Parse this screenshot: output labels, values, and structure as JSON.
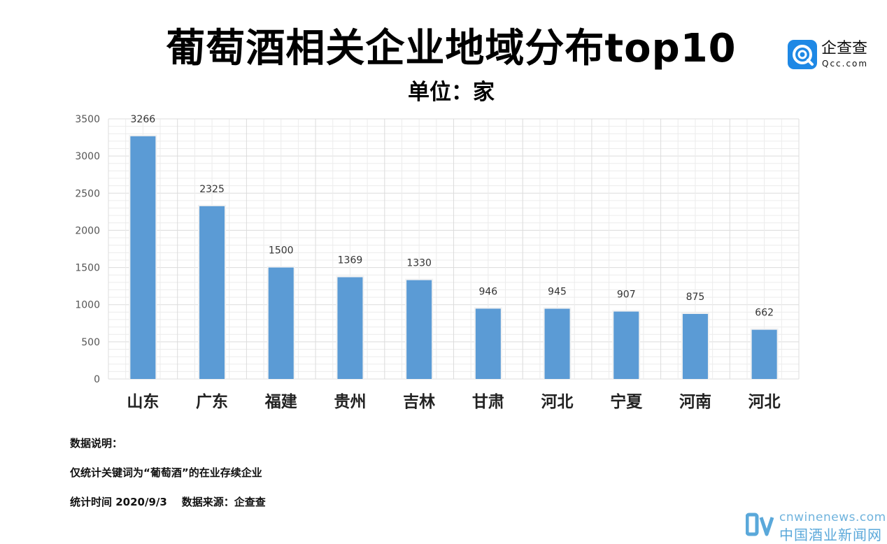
{
  "header": {
    "title": "葡萄酒相关企业地域分布top10",
    "subtitle": "单位：家"
  },
  "logo": {
    "icon": "qcc-logo-icon",
    "name": "企查查",
    "domain": "Qcc.com",
    "color": "#1e88e5"
  },
  "chart_data": {
    "type": "bar",
    "title": "葡萄酒相关企业地域分布top10",
    "subtitle": "单位：家",
    "categories": [
      "山东",
      "广东",
      "福建",
      "贵州",
      "吉林",
      "甘肃",
      "河北",
      "宁夏",
      "河南",
      "河北"
    ],
    "values": [
      3266,
      2325,
      1500,
      1369,
      1330,
      946,
      945,
      907,
      875,
      662
    ],
    "data_labels": [
      "3266",
      "2325",
      "1500",
      "1369",
      "1330",
      "946",
      "945",
      "907",
      "875",
      "662"
    ],
    "yticks": [
      "0",
      "500",
      "1000",
      "1500",
      "2000",
      "2500",
      "3000",
      "3500"
    ],
    "xlabel": "",
    "ylabel": "",
    "ylim": [
      0,
      3500
    ],
    "grid": true,
    "legend": "none",
    "bar_color": "#5b9bd5"
  },
  "notes": {
    "heading": "数据说明：",
    "line1": "仅统计关键词为“葡萄酒”的在业存续企业",
    "line2": "统计时间 2020/9/3    数据来源：企查查"
  },
  "watermark": {
    "icon": "cnwinenews-logo-icon",
    "url": "cnwinenews.com",
    "name": "中国酒业新闻网",
    "color": "#5aa8da"
  }
}
